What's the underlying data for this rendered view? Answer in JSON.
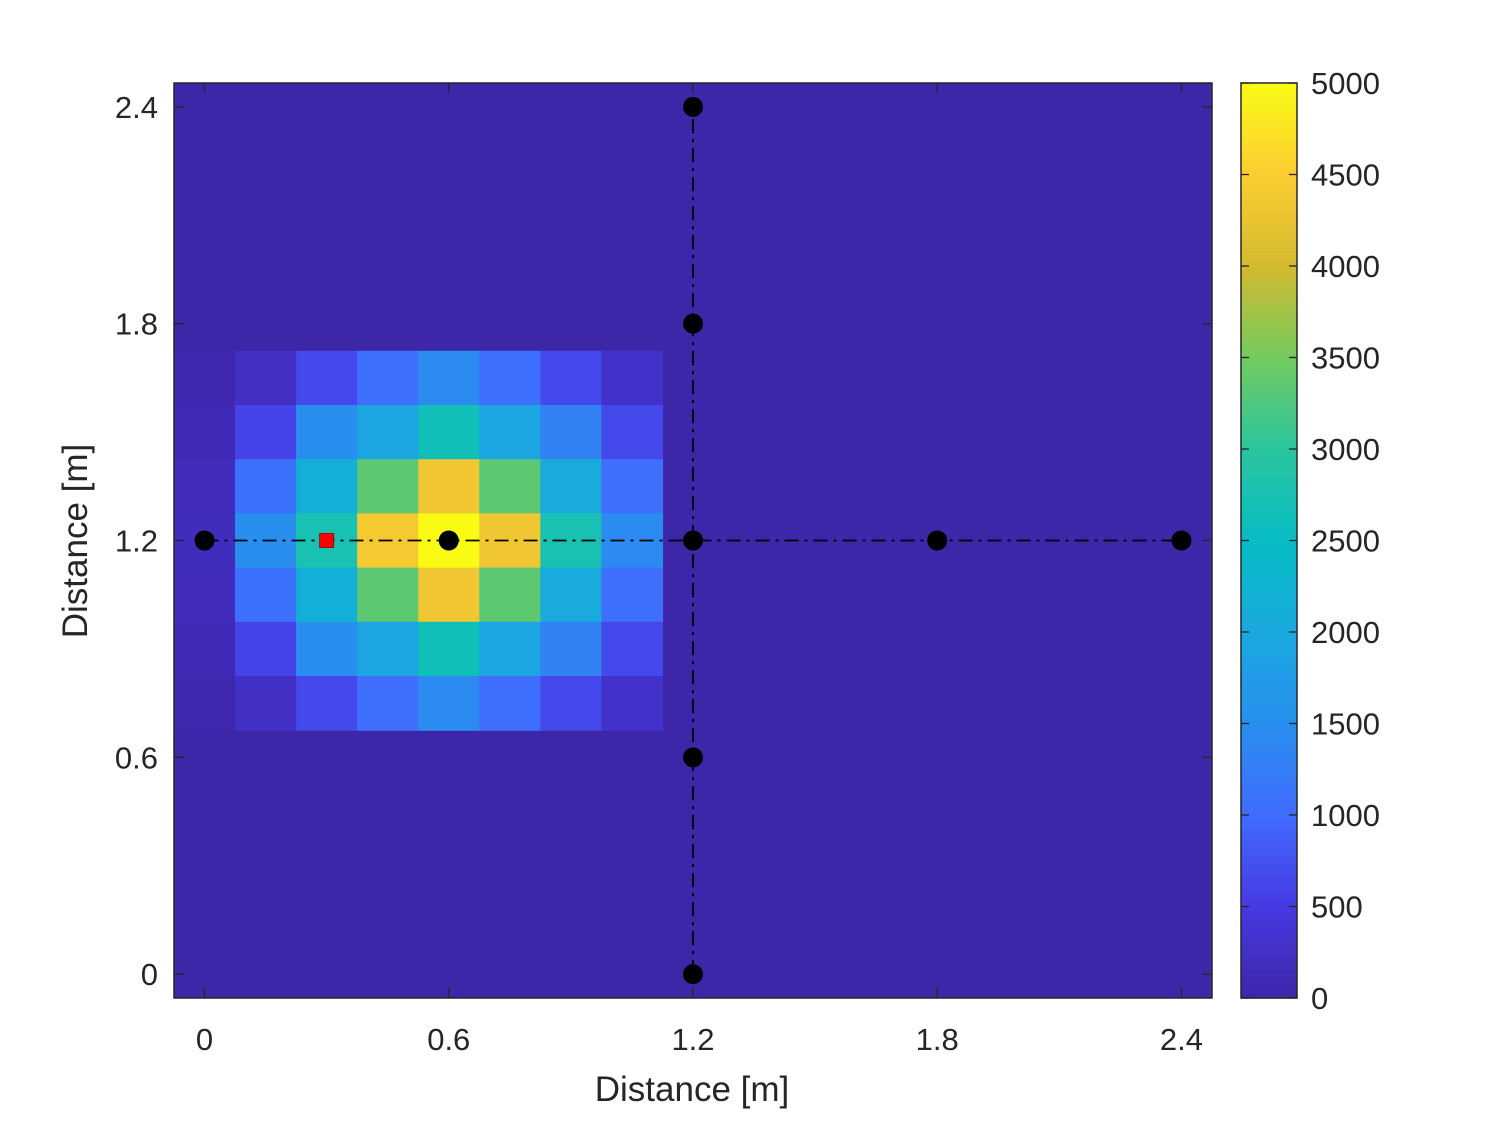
{
  "chart_data": {
    "type": "heatmap",
    "title": "",
    "xlabel": "Distance [m]",
    "ylabel": "Distance [m]",
    "xlim": [
      -0.075,
      2.475
    ],
    "ylim": [
      -0.066,
      2.466
    ],
    "xticks": [
      0,
      0.6,
      1.2,
      1.8,
      2.4
    ],
    "xtick_labels": [
      "0",
      "0.6",
      "1.2",
      "1.8",
      "2.4"
    ],
    "yticks": [
      0,
      0.6,
      1.2,
      1.8,
      2.4
    ],
    "ytick_labels": [
      "0",
      "0.6",
      "1.2",
      "1.8",
      "2.4"
    ],
    "colormap": "parula",
    "clim": [
      0,
      5000
    ],
    "colorbar_ticks": [
      0,
      500,
      1000,
      1500,
      2000,
      2500,
      3000,
      3500,
      4000,
      4500,
      5000
    ],
    "colorbar_tick_labels": [
      "0",
      "500",
      "1000",
      "1500",
      "2000",
      "2500",
      "3000",
      "3500",
      "4000",
      "4500",
      "5000"
    ],
    "background_value": 0,
    "grid": {
      "x_edges": [
        -0.075,
        0.075,
        0.225,
        0.375,
        0.525,
        0.675,
        0.825,
        0.975,
        1.125
      ],
      "y_edges_top_to_bottom": [
        1.725,
        1.575,
        1.425,
        1.275,
        1.125,
        0.975,
        0.825,
        0.675
      ],
      "values": [
        [
          60,
          240,
          650,
          1050,
          1450,
          1050,
          650,
          300
        ],
        [
          110,
          600,
          1500,
          1950,
          2650,
          1950,
          1300,
          650
        ],
        [
          160,
          1100,
          2150,
          3350,
          4350,
          3350,
          2050,
          1050
        ],
        [
          180,
          1500,
          2750,
          4400,
          5000,
          4350,
          2750,
          1450
        ],
        [
          160,
          1100,
          2150,
          3350,
          4350,
          3350,
          2050,
          1050
        ],
        [
          110,
          600,
          1500,
          1950,
          2650,
          1950,
          1300,
          650
        ],
        [
          60,
          240,
          650,
          1050,
          1450,
          1050,
          650,
          300
        ]
      ]
    },
    "lines": [
      {
        "name": "horizontal-dashdot",
        "x": [
          0,
          2.4
        ],
        "y": [
          1.2,
          1.2
        ],
        "style": "dashdot",
        "color": "#000000"
      },
      {
        "name": "vertical-dashdot",
        "x": [
          1.2,
          1.2
        ],
        "y": [
          0,
          2.4
        ],
        "style": "dashdot",
        "color": "#000000"
      }
    ],
    "points": [
      {
        "x": 0,
        "y": 1.2
      },
      {
        "x": 0.6,
        "y": 1.2
      },
      {
        "x": 1.2,
        "y": 1.2
      },
      {
        "x": 1.8,
        "y": 1.2
      },
      {
        "x": 2.4,
        "y": 1.2
      },
      {
        "x": 1.2,
        "y": 0
      },
      {
        "x": 1.2,
        "y": 0.6
      },
      {
        "x": 1.2,
        "y": 1.8
      },
      {
        "x": 1.2,
        "y": 2.4
      }
    ],
    "marker_source": {
      "x": 0.3,
      "y": 1.2,
      "shape": "square",
      "color": "#ff0000"
    }
  }
}
